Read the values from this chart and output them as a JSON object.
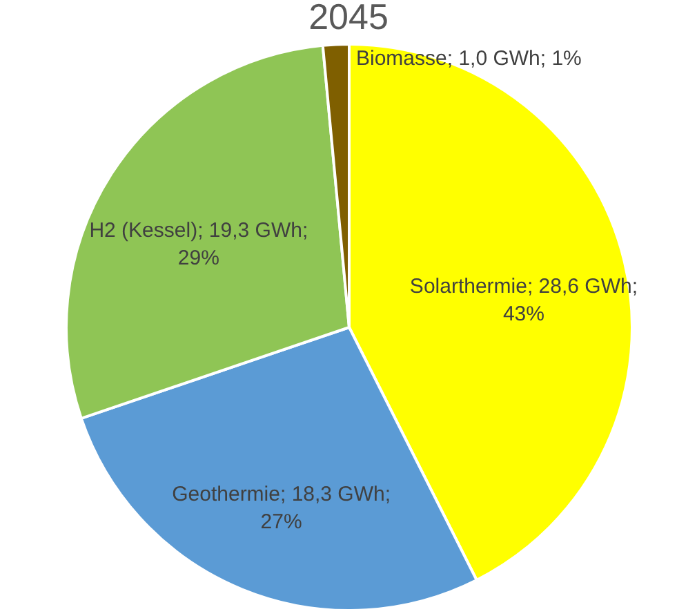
{
  "chart_data": {
    "type": "pie",
    "title": "2045",
    "categories": [
      "Solarthermie",
      "Geothermie",
      "H2 (Kessel)",
      "Biomasse"
    ],
    "values": [
      28.6,
      18.3,
      19.3,
      1.0
    ],
    "colors": [
      "#ffff00",
      "#5b9bd5",
      "#8fc555",
      "#7f5f00"
    ],
    "value_labels": [
      "28,6 GWh; 43%",
      "18,3 GWh; 27%",
      "19,3 GWh; 29%",
      "1,0 GWh; 1%"
    ],
    "legend": false
  }
}
